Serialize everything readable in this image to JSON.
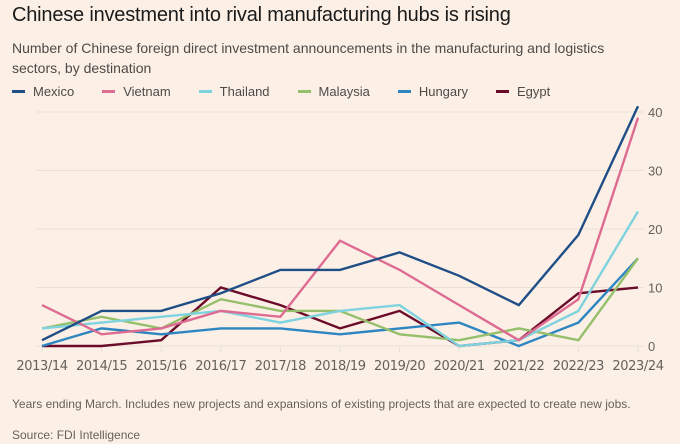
{
  "header": {
    "title": "Chinese investment into rival manufacturing hubs is rising",
    "subtitle": "Number of Chinese foreign direct investment announcements in the manufacturing and logistics sectors, by destination"
  },
  "footer": {
    "note": "Years ending March. Includes new projects and expansions of existing projects that are expected to create new jobs.",
    "source": "Source: FDI Intelligence"
  },
  "colors": {
    "background": "#fcf0e6",
    "gridline": "#eadfd6",
    "axis_text": "#66605c"
  },
  "chart_data": {
    "type": "line",
    "title": "Chinese investment into rival manufacturing hubs is rising",
    "subtitle": "Number of Chinese foreign direct investment announcements in the manufacturing and logistics sectors, by destination",
    "xlabel": "",
    "ylabel": "",
    "ylim": [
      0,
      40
    ],
    "yticks": [
      0,
      10,
      20,
      30,
      40
    ],
    "y_axis_side": "right",
    "grid": true,
    "legend_position": "top-left",
    "x": [
      "2013/14",
      "2014/15",
      "2015/16",
      "2016/17",
      "2017/18",
      "2018/19",
      "2019/20",
      "2020/21",
      "2021/22",
      "2022/23",
      "2023/24"
    ],
    "series": [
      {
        "name": "Mexico",
        "color": "#1f4e87",
        "values": [
          1,
          6,
          6,
          9,
          13,
          13,
          16,
          12,
          7,
          19,
          41
        ]
      },
      {
        "name": "Vietnam",
        "color": "#de6b91",
        "values": [
          7,
          2,
          3,
          6,
          5,
          18,
          13,
          7,
          1,
          8,
          39
        ]
      },
      {
        "name": "Thailand",
        "color": "#7fd3de",
        "values": [
          3,
          4,
          5,
          6,
          4,
          6,
          7,
          0,
          1,
          6,
          23
        ]
      },
      {
        "name": "Malaysia",
        "color": "#96bf6b",
        "values": [
          3,
          5,
          3,
          8,
          6,
          6,
          2,
          1,
          3,
          1,
          15
        ]
      },
      {
        "name": "Hungary",
        "color": "#2e86c1",
        "values": [
          0,
          3,
          2,
          3,
          3,
          2,
          3,
          4,
          0,
          4,
          15
        ]
      },
      {
        "name": "Egypt",
        "color": "#6b0b2a",
        "values": [
          0,
          0,
          1,
          10,
          7,
          3,
          6,
          0,
          1,
          9,
          10
        ]
      }
    ]
  }
}
